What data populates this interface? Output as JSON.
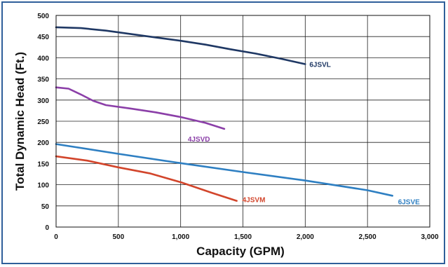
{
  "chart_data": {
    "type": "line",
    "title": "",
    "xlabel": "Capacity (GPM)",
    "ylabel": "Total Dynamic Head (Ft.)",
    "xlim": [
      0,
      3000
    ],
    "ylim": [
      0,
      500
    ],
    "x_ticks": [
      0,
      500,
      1000,
      1500,
      2000,
      2500,
      3000
    ],
    "x_tick_labels": [
      "0",
      "500",
      "1,000",
      "1,500",
      "2,000",
      "2,500",
      "3,000"
    ],
    "y_ticks": [
      0,
      50,
      100,
      150,
      200,
      250,
      300,
      350,
      400,
      450,
      500
    ],
    "y_tick_labels": [
      "0",
      "50",
      "100",
      "150",
      "200",
      "250",
      "300",
      "350",
      "400",
      "450",
      "500"
    ],
    "grid": true,
    "legend": "none (series labeled inline)",
    "series": [
      {
        "name": "6JSVL",
        "color": "#1f3864",
        "points": [
          [
            0,
            472
          ],
          [
            200,
            470
          ],
          [
            400,
            464
          ],
          [
            600,
            456
          ],
          [
            800,
            448
          ],
          [
            1000,
            440
          ],
          [
            1200,
            431
          ],
          [
            1400,
            420
          ],
          [
            1600,
            410
          ],
          [
            1800,
            398
          ],
          [
            2000,
            385
          ]
        ]
      },
      {
        "name": "4JSVD",
        "color": "#8b3fa8",
        "points": [
          [
            0,
            330
          ],
          [
            100,
            327
          ],
          [
            200,
            313
          ],
          [
            300,
            298
          ],
          [
            400,
            288
          ],
          [
            600,
            280
          ],
          [
            800,
            271
          ],
          [
            1000,
            260
          ],
          [
            1200,
            246
          ],
          [
            1350,
            232
          ]
        ]
      },
      {
        "name": "6JSVE",
        "color": "#2e7fc2",
        "points": [
          [
            0,
            196
          ],
          [
            500,
            173
          ],
          [
            1000,
            151
          ],
          [
            1500,
            130
          ],
          [
            2000,
            110
          ],
          [
            2500,
            87
          ],
          [
            2700,
            74
          ]
        ]
      },
      {
        "name": "4JSVM",
        "color": "#d2452b",
        "points": [
          [
            0,
            167
          ],
          [
            250,
            157
          ],
          [
            500,
            141
          ],
          [
            750,
            127
          ],
          [
            1000,
            106
          ],
          [
            1250,
            81
          ],
          [
            1450,
            62
          ]
        ]
      }
    ]
  }
}
